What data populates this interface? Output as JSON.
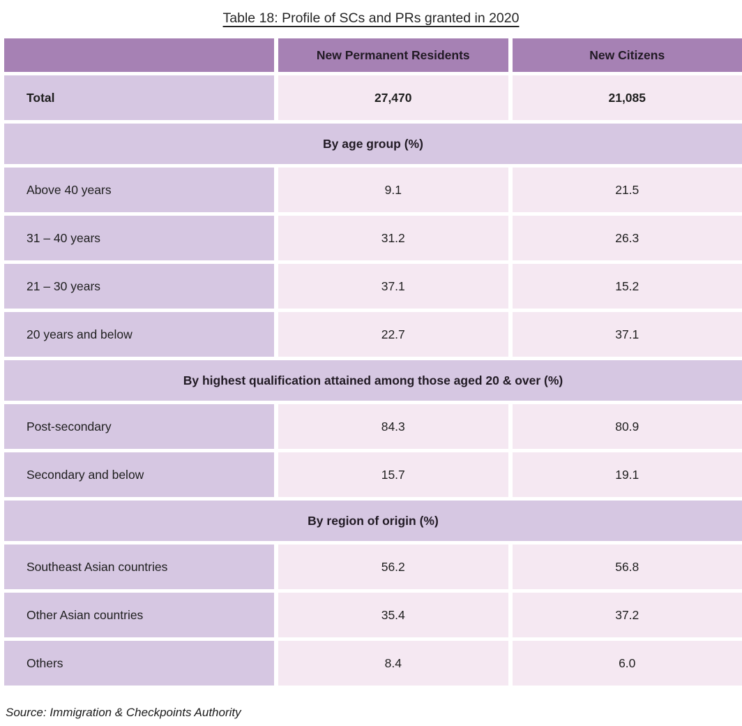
{
  "title": "Table 18: Profile of SCs and PRs granted in 2020",
  "source_note": "Source: Immigration & Checkpoints Authority",
  "colors": {
    "header_bg": "#a681b4",
    "label_bg": "#d6c7e2",
    "data_bg": "#f5e8f2",
    "text": "#1e1e1e"
  },
  "chart_data": {
    "type": "table",
    "title": "Table 18: Profile of SCs and PRs granted in 2020",
    "columns": [
      "",
      "New Permanent Residents",
      "New Citizens"
    ],
    "rows": [
      {
        "kind": "data",
        "label": "Total",
        "values": [
          "27,470",
          "21,085"
        ],
        "bold": true
      },
      {
        "kind": "section",
        "label": "By age group (%)"
      },
      {
        "kind": "data",
        "label": "Above 40 years",
        "values": [
          "9.1",
          "21.5"
        ]
      },
      {
        "kind": "data",
        "label": "31 – 40 years",
        "values": [
          "31.2",
          "26.3"
        ]
      },
      {
        "kind": "data",
        "label": "21 – 30 years",
        "values": [
          "37.1",
          "15.2"
        ]
      },
      {
        "kind": "data",
        "label": "20 years and below",
        "values": [
          "22.7",
          "37.1"
        ]
      },
      {
        "kind": "section",
        "label": "By highest qualification attained among those aged 20 & over (%)"
      },
      {
        "kind": "data",
        "label": "Post-secondary",
        "values": [
          "84.3",
          "80.9"
        ]
      },
      {
        "kind": "data",
        "label": "Secondary and below",
        "values": [
          "15.7",
          "19.1"
        ]
      },
      {
        "kind": "section",
        "label": "By region of origin (%)"
      },
      {
        "kind": "data",
        "label": "Southeast Asian countries",
        "values": [
          "56.2",
          "56.8"
        ]
      },
      {
        "kind": "data",
        "label": "Other Asian countries",
        "values": [
          "35.4",
          "37.2"
        ]
      },
      {
        "kind": "data",
        "label": "Others",
        "values": [
          "8.4",
          "6.0"
        ]
      }
    ]
  }
}
